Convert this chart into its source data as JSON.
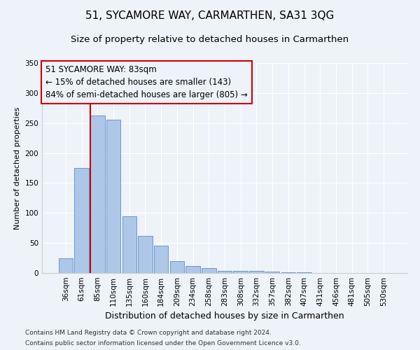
{
  "title": "51, SYCAMORE WAY, CARMARTHEN, SA31 3QG",
  "subtitle": "Size of property relative to detached houses in Carmarthen",
  "xlabel": "Distribution of detached houses by size in Carmarthen",
  "ylabel": "Number of detached properties",
  "bar_categories": [
    "36sqm",
    "61sqm",
    "85sqm",
    "110sqm",
    "135sqm",
    "160sqm",
    "184sqm",
    "209sqm",
    "234sqm",
    "258sqm",
    "283sqm",
    "308sqm",
    "332sqm",
    "357sqm",
    "382sqm",
    "407sqm",
    "431sqm",
    "456sqm",
    "481sqm",
    "505sqm",
    "530sqm"
  ],
  "bar_values": [
    25,
    175,
    263,
    255,
    95,
    62,
    46,
    20,
    12,
    8,
    4,
    3,
    3,
    2,
    1,
    1,
    0,
    0,
    0,
    0,
    0
  ],
  "bar_color": "#aec6e8",
  "bar_edge_color": "#5a8fc2",
  "property_line_idx": 2,
  "property_line_color": "#cc0000",
  "annotation_text_line1": "51 SYCAMORE WAY: 83sqm",
  "annotation_text_line2": "← 15% of detached houses are smaller (143)",
  "annotation_text_line3": "84% of semi-detached houses are larger (805) →",
  "annotation_box_color": "#cc0000",
  "ylim": [
    0,
    350
  ],
  "yticks": [
    0,
    50,
    100,
    150,
    200,
    250,
    300,
    350
  ],
  "footnote1": "Contains HM Land Registry data © Crown copyright and database right 2024.",
  "footnote2": "Contains public sector information licensed under the Open Government Licence v3.0.",
  "background_color": "#eef2f9",
  "grid_color": "#ffffff",
  "title_fontsize": 11,
  "subtitle_fontsize": 9.5,
  "xlabel_fontsize": 9,
  "ylabel_fontsize": 8,
  "tick_fontsize": 7.5,
  "annotation_fontsize": 8.5,
  "footnote_fontsize": 6.5
}
